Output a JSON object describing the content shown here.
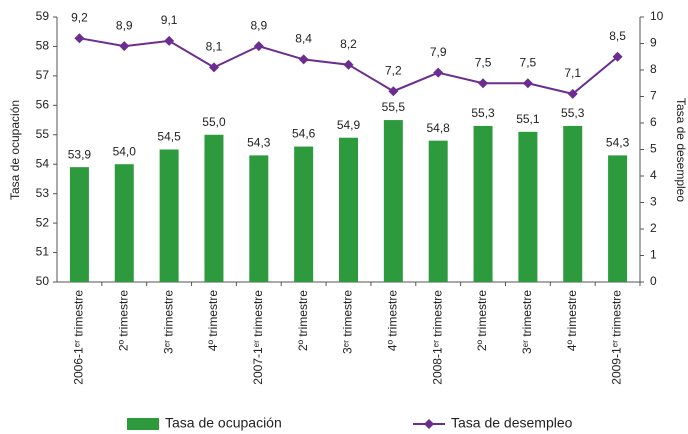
{
  "chart_data": {
    "type": "bar-line",
    "categories": [
      "2006-1ᵉʳ trimestre",
      "2º trimestre",
      "3ᵉʳ trimestre",
      "4º trimestre",
      "2007-1ᵉʳ trimestre",
      "2º trimestre",
      "3ᵉʳ trimestre",
      "4º trimestre",
      "2008-1ᵉʳ trimestre",
      "2º trimestre",
      "3ᵉʳ trimestre",
      "4º trimestre",
      "2009-1ᵉʳ trimestre"
    ],
    "y_label": "Tasa de ocupación",
    "y2_label": "Tasa de desempleo",
    "ylim": [
      50,
      59
    ],
    "yticks": [
      50,
      51,
      52,
      53,
      54,
      55,
      56,
      57,
      58,
      59
    ],
    "y2lim": [
      0,
      10
    ],
    "y2ticks": [
      0,
      1,
      2,
      3,
      4,
      5,
      6,
      7,
      8,
      9,
      10
    ],
    "series": [
      {
        "name": "Tasa de ocupación",
        "type": "bar",
        "color": "#2e9a3e",
        "values": [
          53.9,
          54.0,
          54.5,
          55.0,
          54.3,
          54.6,
          54.9,
          55.5,
          54.8,
          55.3,
          55.1,
          55.3,
          54.3
        ],
        "value_labels": [
          "53,9",
          "54,0",
          "54,5",
          "55,0",
          "54,3",
          "54,6",
          "54,9",
          "55,5",
          "54,8",
          "55,3",
          "55,1",
          "55,3",
          "54,3"
        ]
      },
      {
        "name": "Tasa de desempleo",
        "type": "line",
        "axis": "y2",
        "color": "#6b2d90",
        "values": [
          9.2,
          8.9,
          9.1,
          8.1,
          8.9,
          8.4,
          8.2,
          7.2,
          7.9,
          7.5,
          7.5,
          7.1,
          8.5
        ],
        "value_labels": [
          "9,2",
          "8,9",
          "9,1",
          "8,1",
          "8,9",
          "8,4",
          "8,2",
          "7,2",
          "7,9",
          "7,5",
          "7,5",
          "7,1",
          "8,5"
        ]
      }
    ],
    "legend": "bottom"
  }
}
